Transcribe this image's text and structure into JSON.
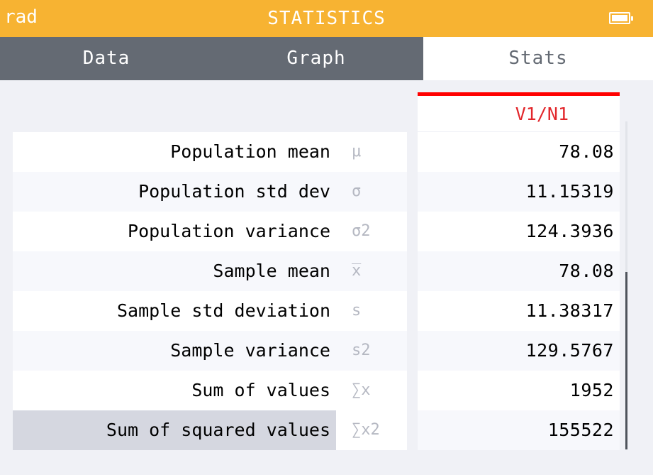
{
  "titlebar": {
    "angle_mode": "rad",
    "title": "STATISTICS",
    "battery_icon": "battery-icon"
  },
  "tabs": [
    {
      "label": "Data"
    },
    {
      "label": "Graph"
    },
    {
      "label": "Stats",
      "active": true
    }
  ],
  "stats_table": {
    "column_header": "V1/N1",
    "rows": [
      {
        "label": "Population mean",
        "symbol": "μ",
        "value": "78.08"
      },
      {
        "label": "Population std dev",
        "symbol": "σ",
        "value": "11.15319"
      },
      {
        "label": "Population variance",
        "symbol": "σ2",
        "value": "124.3936"
      },
      {
        "label": "Sample mean",
        "symbol": "x̅",
        "value": "78.08"
      },
      {
        "label": "Sample std deviation",
        "symbol": "s",
        "value": "11.38317"
      },
      {
        "label": "Sample variance",
        "symbol": "s2",
        "value": "129.5767"
      },
      {
        "label": "Sum of values",
        "symbol": "∑x",
        "value": "1952"
      },
      {
        "label": "Sum of squared values",
        "symbol": "∑x2",
        "value": "155522",
        "selected": true
      }
    ]
  },
  "colors": {
    "titlebar": "#f7b332",
    "tabbar": "#646a73",
    "accent_red": "#e2262b",
    "selection": "#d5d7e0"
  }
}
